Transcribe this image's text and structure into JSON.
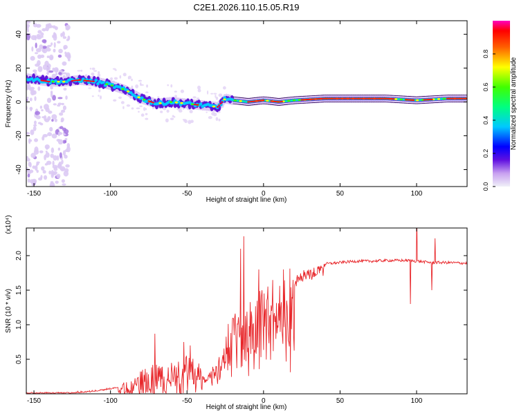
{
  "title": "C2E1.2026.110.15.05.R19",
  "chart_data": [
    {
      "type": "heatmap",
      "name": "spectrogram",
      "xlabel": "Height of straight line (km)",
      "ylabel": "Frequency (Hz)",
      "xlim": [
        -155,
        133
      ],
      "ylim": [
        -50,
        48
      ],
      "xticks": [
        -150,
        -100,
        -50,
        0,
        50,
        100
      ],
      "yticks": [
        -40,
        -20,
        0,
        20,
        40
      ],
      "colorbar": {
        "label": "Normalized spectral amplitude",
        "ticks": [
          "0.0",
          "0.2",
          "0.4",
          "0.6",
          "0.8"
        ],
        "tick_values": [
          0.0,
          0.2,
          0.4,
          0.6,
          0.8
        ],
        "range": [
          0,
          1
        ]
      },
      "ridge": {
        "height_km": [
          -155,
          -140,
          -130,
          -120,
          -110,
          -100,
          -90,
          -80,
          -70,
          -60,
          -50,
          -40,
          -30,
          -25,
          -20,
          -10,
          0,
          10,
          20,
          40,
          60,
          80,
          100,
          120,
          133
        ],
        "freq_hz": [
          14,
          12,
          12,
          13,
          12,
          10,
          7,
          2,
          -1,
          0,
          -1,
          -2,
          -3,
          2,
          1,
          0,
          1,
          0,
          1,
          2,
          2,
          2,
          1,
          2,
          2
        ]
      }
    },
    {
      "type": "line",
      "name": "snr",
      "xlabel": "Height of straight line (km)",
      "ylabel": "SNR (10 * v/v)",
      "scale_label": "(x10⁴)",
      "xlim": [
        -155,
        133
      ],
      "ylim": [
        0,
        2.4
      ],
      "xticks": [
        -150,
        -100,
        -50,
        0,
        50,
        100
      ],
      "yticks": [
        "0.5",
        "1.0",
        "1.5",
        "2.0"
      ],
      "ytick_values": [
        0.5,
        1.0,
        1.5,
        2.0
      ],
      "color": "#e8262a",
      "envelope": {
        "x": [
          -155,
          -130,
          -110,
          -95,
          -85,
          -75,
          -65,
          -55,
          -45,
          -38,
          -30,
          -22,
          -15,
          -10,
          -5,
          5,
          10,
          15,
          20,
          25,
          30,
          40,
          50,
          60,
          70,
          80,
          90,
          95,
          100,
          105,
          110,
          120,
          133
        ],
        "y": [
          0.02,
          0.02,
          0.05,
          0.1,
          0.2,
          0.35,
          0.4,
          0.45,
          0.5,
          0.2,
          0.55,
          0.9,
          1.1,
          1.2,
          1.35,
          1.4,
          1.45,
          1.55,
          1.65,
          1.75,
          1.8,
          1.88,
          1.9,
          1.92,
          1.92,
          1.93,
          1.93,
          1.93,
          1.92,
          1.91,
          1.9,
          1.9,
          1.89
        ]
      },
      "spikes": [
        {
          "x": -71,
          "y": 0.87
        },
        {
          "x": -52,
          "y": 0.75
        },
        {
          "x": -48,
          "y": 0.7
        },
        {
          "x": -15,
          "y": 2.1
        },
        {
          "x": -13,
          "y": 2.28
        },
        {
          "x": -3,
          "y": 1.8
        },
        {
          "x": 13,
          "y": 1.8
        },
        {
          "x": 96,
          "y": 1.3
        },
        {
          "x": 100,
          "y": 2.6
        },
        {
          "x": 110,
          "y": 1.5
        },
        {
          "x": 112,
          "y": 2.25
        }
      ]
    }
  ]
}
